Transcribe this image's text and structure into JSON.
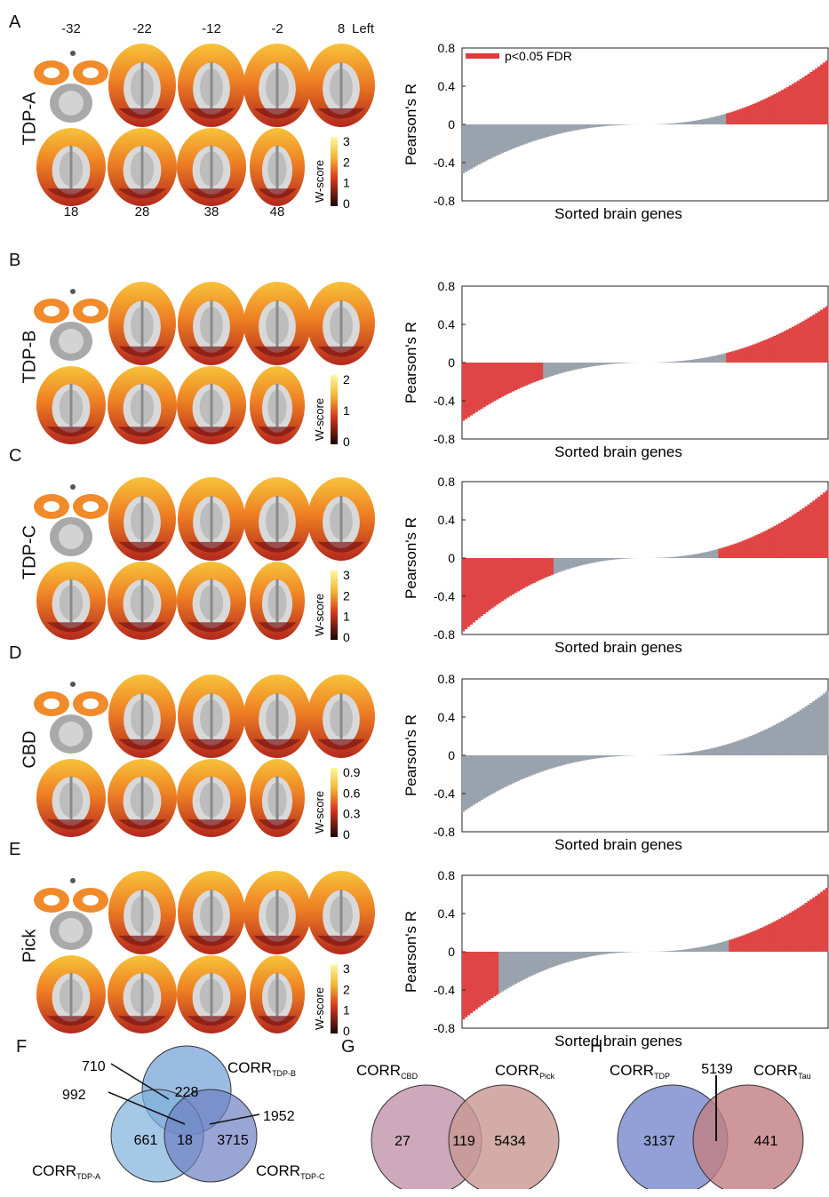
{
  "panels": [
    {
      "letter": "A",
      "row_label": "TDP-A",
      "slice_top_labels": [
        "-32",
        "-22",
        "-12",
        "-2",
        "8"
      ],
      "side_label": "Left",
      "slice_bottom_labels": [
        "18",
        "28",
        "38",
        "48"
      ],
      "colorbar": {
        "label": "W-score",
        "ticks": [
          "3",
          "2",
          "1",
          "0"
        ]
      },
      "chart": {
        "ylabel": "Pearson's R",
        "xlabel": "Sorted brain genes",
        "yticks": [
          "0.8",
          "0.4",
          "0",
          "-0.4",
          "-0.8"
        ],
        "ylim": [
          -0.8,
          0.8
        ],
        "legend": "p<0.05 FDR"
      }
    },
    {
      "letter": "B",
      "row_label": "TDP-B",
      "colorbar": {
        "label": "W-score",
        "ticks": [
          "2",
          "1",
          "0"
        ]
      },
      "chart": {
        "ylabel": "Pearson's R",
        "xlabel": "Sorted brain genes",
        "yticks": [
          "0.8",
          "0.4",
          "0",
          "-0.4",
          "-0.8"
        ],
        "ylim": [
          -0.8,
          0.8
        ]
      }
    },
    {
      "letter": "C",
      "row_label": "TDP-C",
      "colorbar": {
        "label": "W-score",
        "ticks": [
          "3",
          "2",
          "1",
          "0"
        ]
      },
      "chart": {
        "ylabel": "Pearson's R",
        "xlabel": "Sorted brain genes",
        "yticks": [
          "0.8",
          "0.4",
          "0",
          "-0.4",
          "-0.8"
        ],
        "ylim": [
          -0.8,
          0.8
        ]
      }
    },
    {
      "letter": "D",
      "row_label": "CBD",
      "colorbar": {
        "label": "W-score",
        "ticks": [
          "0.9",
          "0.6",
          "0.3",
          "0"
        ]
      },
      "chart": {
        "ylabel": "Pearson's R",
        "xlabel": "Sorted brain genes",
        "yticks": [
          "0.8",
          "0.4",
          "0",
          "-0.4",
          "-0.8"
        ],
        "ylim": [
          -0.8,
          0.8
        ]
      }
    },
    {
      "letter": "E",
      "row_label": "Pick",
      "colorbar": {
        "label": "W-score",
        "ticks": [
          "3",
          "2",
          "1",
          "0"
        ]
      },
      "chart": {
        "ylabel": "Pearson's R",
        "xlabel": "Sorted brain genes",
        "yticks": [
          "0.8",
          "0.4",
          "0",
          "-0.4",
          "-0.8"
        ],
        "ylim": [
          -0.8,
          0.8
        ]
      }
    }
  ],
  "chart_data": [
    {
      "type": "bar",
      "panel": "A",
      "ylim": [
        -0.8,
        0.8
      ],
      "series_min": -0.52,
      "series_max": 0.68,
      "significant": {
        "low_end": false,
        "high_end": true,
        "high_from_fraction": 0.72
      },
      "ylabel": "Pearson's R",
      "xlabel": "Sorted brain genes"
    },
    {
      "type": "bar",
      "panel": "B",
      "ylim": [
        -0.8,
        0.8
      ],
      "series_min": -0.62,
      "series_max": 0.6,
      "significant": {
        "low_end": true,
        "low_to_fraction": 0.22,
        "high_end": true,
        "high_from_fraction": 0.72
      },
      "ylabel": "Pearson's R",
      "xlabel": "Sorted brain genes"
    },
    {
      "type": "bar",
      "panel": "C",
      "ylim": [
        -0.8,
        0.8
      ],
      "series_min": -0.78,
      "series_max": 0.72,
      "significant": {
        "low_end": true,
        "low_to_fraction": 0.25,
        "high_end": true,
        "high_from_fraction": 0.7
      },
      "ylabel": "Pearson's R",
      "xlabel": "Sorted brain genes"
    },
    {
      "type": "bar",
      "panel": "D",
      "ylim": [
        -0.8,
        0.8
      ],
      "series_min": -0.6,
      "series_max": 0.68,
      "significant": {
        "low_end": false,
        "high_end": false
      },
      "ylabel": "Pearson's R",
      "xlabel": "Sorted brain genes"
    },
    {
      "type": "bar",
      "panel": "E",
      "ylim": [
        -0.8,
        0.8
      ],
      "series_min": -0.72,
      "series_max": 0.68,
      "significant": {
        "low_end": true,
        "low_to_fraction": 0.1,
        "high_end": true,
        "high_from_fraction": 0.73
      },
      "ylabel": "Pearson's R",
      "xlabel": "Sorted brain genes"
    }
  ],
  "venn": {
    "F": {
      "letter": "F",
      "set_a": {
        "base": "CORR",
        "sub": "TDP-A",
        "only": "661"
      },
      "set_b": {
        "base": "CORR",
        "sub": "TDP-B",
        "only": "228"
      },
      "set_c": {
        "base": "CORR",
        "sub": "TDP-C",
        "only": "3715"
      },
      "ab": "710",
      "ac": "992",
      "bc": "1952",
      "abc": "18"
    },
    "G": {
      "letter": "G",
      "set_a": {
        "base": "CORR",
        "sub": "CBD",
        "only": "27"
      },
      "set_b": {
        "base": "CORR",
        "sub": "Pick",
        "only": "5434"
      },
      "ab": "119"
    },
    "H": {
      "letter": "H",
      "set_a": {
        "base": "CORR",
        "sub": "TDP",
        "only": "3137"
      },
      "set_b": {
        "base": "CORR",
        "sub": "Tau",
        "only": "441"
      },
      "ab": "5139"
    }
  },
  "colors": {
    "significant": "#e04545",
    "nonsignificant": "#9aa3ad",
    "legend_line": "#e03a3a",
    "venn_tdp_a": "#7fb1dc",
    "venn_tdp_b": "#6f9fd6",
    "venn_tdp_c": "#6e7fc2",
    "venn_cbd": "#c59ab0",
    "venn_pick": "#c89792",
    "venn_tdp": "#7f8fd0",
    "venn_tau": "#c27e82"
  }
}
